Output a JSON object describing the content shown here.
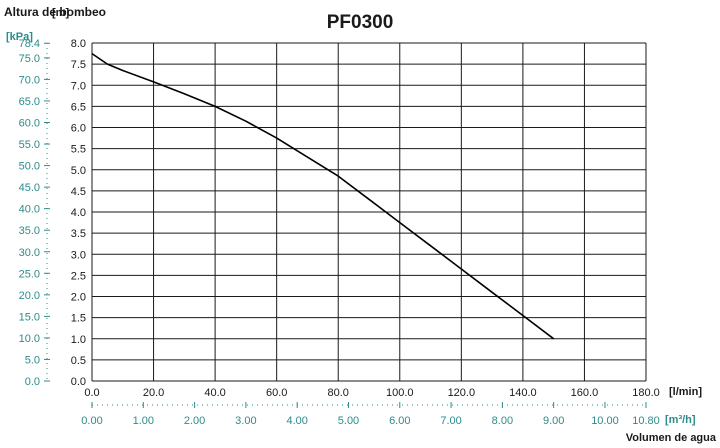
{
  "chart_data": {
    "type": "line",
    "title": "PF0300",
    "ylabel": "Altura de bombeo",
    "xlabel": "Volumen de agua",
    "y_unit_primary": "[m]",
    "y_unit_secondary": "[kPa]",
    "x_unit_primary": "[l/min]",
    "x_unit_secondary": "[m³/h]",
    "xlim": [
      0,
      180
    ],
    "ylim": [
      0,
      8
    ],
    "grid": true,
    "x_ticks": [
      "0.0",
      "20.0",
      "40.0",
      "60.0",
      "80.0",
      "100.0",
      "120.0",
      "140.0",
      "160.0",
      "180.0"
    ],
    "y_ticks": [
      "0.0",
      "0.5",
      "1.0",
      "1.5",
      "2.0",
      "2.5",
      "3.0",
      "3.5",
      "4.0",
      "4.5",
      "5.0",
      "5.5",
      "6.0",
      "6.5",
      "7.0",
      "7.5",
      "8.0"
    ],
    "x2_ticks": [
      "0.00",
      "1.00",
      "2.00",
      "3.00",
      "4.00",
      "5.00",
      "6.00",
      "7.00",
      "8.00",
      "9.00",
      "10.00",
      "10.80"
    ],
    "y2_ticks": [
      "0.0",
      "5.0",
      "10.0",
      "15.0",
      "20.0",
      "25.0",
      "30.0",
      "35.0",
      "40.0",
      "45.0",
      "50.0",
      "55.0",
      "60.0",
      "65.0",
      "70.0",
      "75.0",
      "78.4"
    ],
    "series": [
      {
        "x": [
          0,
          5,
          10,
          20,
          30,
          40,
          50,
          60,
          70,
          80,
          90,
          100,
          110,
          120,
          130,
          140,
          150
        ],
        "y": [
          7.75,
          7.5,
          7.35,
          7.08,
          6.8,
          6.5,
          6.15,
          5.75,
          5.3,
          4.85,
          4.3,
          3.75,
          3.2,
          2.65,
          2.1,
          1.55,
          1.0
        ]
      }
    ]
  },
  "colors": {
    "primary_axis": "#1a1a1a",
    "secondary_axis": "#2e8b8b",
    "grid": "#1a1a1a",
    "line": "#000000"
  }
}
